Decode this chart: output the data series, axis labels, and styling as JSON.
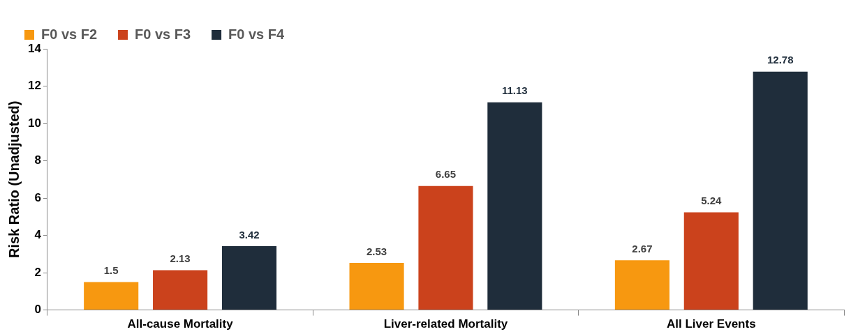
{
  "chart_data": {
    "type": "bar",
    "ylabel": "Risk Ratio (Unadjusted)",
    "categories": [
      "All-cause Mortality",
      "Liver-related Mortality",
      "All Liver Events"
    ],
    "series": [
      {
        "name": "F0 vs F2",
        "color": "#f79810",
        "values": [
          1.5,
          2.53,
          2.67
        ]
      },
      {
        "name": "F0 vs F3",
        "color": "#cb421c",
        "values": [
          2.13,
          6.65,
          5.24
        ]
      },
      {
        "name": "F0 vs F4",
        "color": "#1f2d3b",
        "values": [
          3.42,
          11.13,
          12.78
        ]
      }
    ],
    "ylim": [
      0,
      14
    ],
    "yticks": [
      0,
      2,
      4,
      6,
      8,
      10,
      12,
      14
    ],
    "grid": false,
    "legend": "top left",
    "data_labels": true
  }
}
